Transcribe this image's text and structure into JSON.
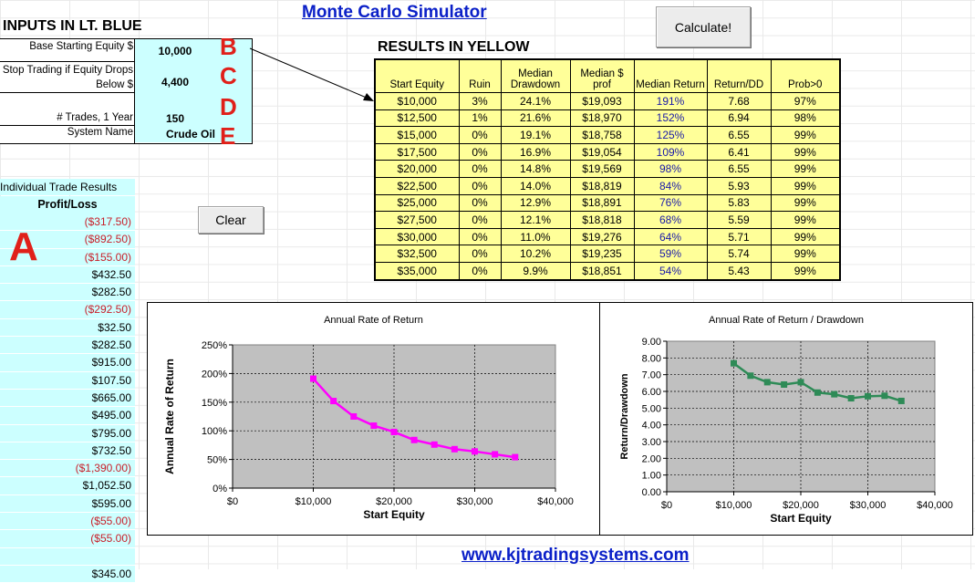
{
  "app": {
    "title": "Monte Carlo Simulator",
    "footer_link": "www.kjtradingsystems.com"
  },
  "inputs": {
    "section_title": "INPUTS IN LT. BLUE",
    "fields": [
      {
        "label": "Base Starting Equity $",
        "value": "10,000",
        "letter": "B"
      },
      {
        "label": "Stop Trading if Equity Drops Below $",
        "value": "4,400",
        "letter": "C"
      },
      {
        "label": "# Trades, 1 Year",
        "value": "150",
        "letter": "D"
      },
      {
        "label": "System Name",
        "value": "Crude Oil",
        "letter": "E"
      }
    ]
  },
  "buttons": {
    "calculate": "Calculate!",
    "clear": "Clear"
  },
  "results": {
    "section_title": "RESULTS IN YELLOW",
    "headers": [
      "Start Equity",
      "Ruin",
      "Median Drawdown",
      "Median $ prof",
      "Median Return",
      "Return/DD",
      "Prob>0"
    ],
    "rows": [
      [
        "$10,000",
        "3%",
        "24.1%",
        "$19,093",
        "191%",
        "7.68",
        "97%"
      ],
      [
        "$12,500",
        "1%",
        "21.6%",
        "$18,970",
        "152%",
        "6.94",
        "98%"
      ],
      [
        "$15,000",
        "0%",
        "19.1%",
        "$18,758",
        "125%",
        "6.55",
        "99%"
      ],
      [
        "$17,500",
        "0%",
        "16.9%",
        "$19,054",
        "109%",
        "6.41",
        "99%"
      ],
      [
        "$20,000",
        "0%",
        "14.8%",
        "$19,569",
        "98%",
        "6.55",
        "99%"
      ],
      [
        "$22,500",
        "0%",
        "14.0%",
        "$18,819",
        "84%",
        "5.93",
        "99%"
      ],
      [
        "$25,000",
        "0%",
        "12.9%",
        "$18,891",
        "76%",
        "5.83",
        "99%"
      ],
      [
        "$27,500",
        "0%",
        "12.1%",
        "$18,818",
        "68%",
        "5.59",
        "99%"
      ],
      [
        "$30,000",
        "0%",
        "11.0%",
        "$19,276",
        "64%",
        "5.71",
        "99%"
      ],
      [
        "$32,500",
        "0%",
        "10.2%",
        "$19,235",
        "59%",
        "5.74",
        "99%"
      ],
      [
        "$35,000",
        "0%",
        "9.9%",
        "$18,851",
        "54%",
        "5.43",
        "99%"
      ]
    ]
  },
  "trades": {
    "section_title": "Individual Trade Results",
    "column_header": "Profit/Loss",
    "letter": "A",
    "values": [
      "($317.50)",
      "($892.50)",
      "($155.00)",
      "$432.50",
      "$282.50",
      "($292.50)",
      "$32.50",
      "$282.50",
      "$915.00",
      "$107.50",
      "$665.00",
      "$495.00",
      "$795.00",
      "$732.50",
      "($1,390.00)",
      "$1,052.50",
      "$595.00",
      "($55.00)",
      "($55.00)",
      "",
      "$345.00"
    ]
  },
  "chart_data": [
    {
      "type": "line",
      "title": "Annual Rate of Return",
      "xlabel": "Start Equity",
      "ylabel": "Annual Rate of Return",
      "x": [
        10000,
        12500,
        15000,
        17500,
        20000,
        22500,
        25000,
        27500,
        30000,
        32500,
        35000
      ],
      "series": [
        {
          "values": [
            191,
            152,
            125,
            109,
            98,
            84,
            76,
            68,
            64,
            59,
            54
          ]
        }
      ],
      "xlim": [
        0,
        40000
      ],
      "ylim": [
        0,
        250
      ],
      "xticks": [
        "$0",
        "$10,000",
        "$20,000",
        "$30,000",
        "$40,000"
      ],
      "yticks": [
        "0%",
        "50%",
        "100%",
        "150%",
        "200%",
        "250%"
      ],
      "color": "#ff00ff",
      "plot_bg": "#c0c0c0",
      "grid": true
    },
    {
      "type": "line",
      "title": "Annual Rate of Return / Drawdown",
      "xlabel": "Start Equity",
      "ylabel": "Return/Drawdown",
      "x": [
        10000,
        12500,
        15000,
        17500,
        20000,
        22500,
        25000,
        27500,
        30000,
        32500,
        35000
      ],
      "series": [
        {
          "values": [
            7.68,
            6.94,
            6.55,
            6.41,
            6.55,
            5.93,
            5.83,
            5.59,
            5.71,
            5.74,
            5.43
          ]
        }
      ],
      "xlim": [
        0,
        40000
      ],
      "ylim": [
        0,
        9
      ],
      "xticks": [
        "$0",
        "$10,000",
        "$20,000",
        "$30,000",
        "$40,000"
      ],
      "yticks": [
        "0.00",
        "1.00",
        "2.00",
        "3.00",
        "4.00",
        "5.00",
        "6.00",
        "7.00",
        "8.00",
        "9.00"
      ],
      "color": "#2e8b57",
      "plot_bg": "#c0c0c0",
      "grid": true
    }
  ]
}
